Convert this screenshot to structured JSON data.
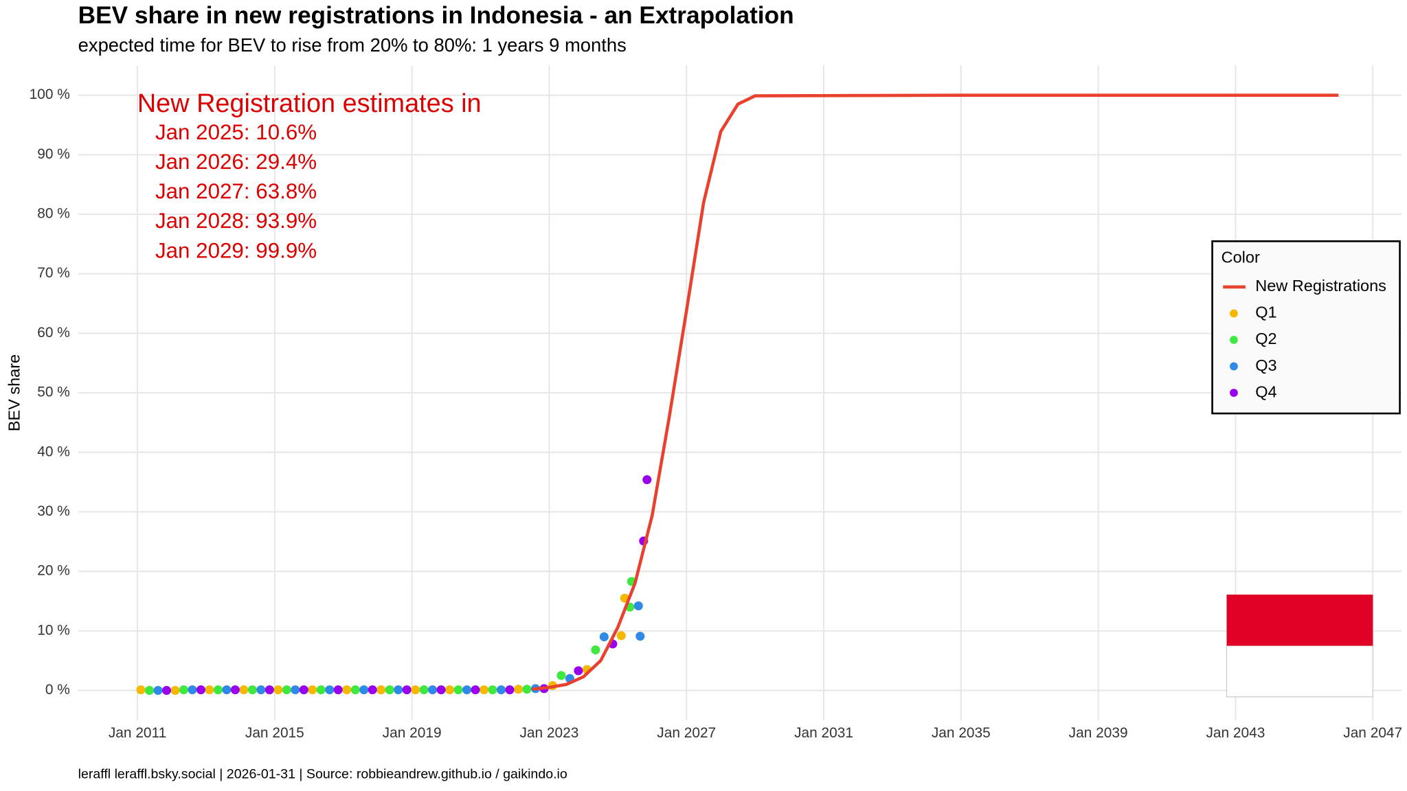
{
  "chart_data": {
    "type": "line",
    "title": "BEV share in new registrations in Indonesia - an Extrapolation",
    "subtitle": "expected time for BEV to rise from 20% to 80%: 1 years 9 months",
    "y_label": "BEV share",
    "caption": "leraffl   leraffl.bsky.social  | 2026-01-31 | Source: robbieandrew.github.io / gaikindo.io",
    "annotation_title": "New Registration estimates in",
    "annotations": [
      "Jan 2025: 10.6%",
      "Jan 2026: 29.4%",
      "Jan 2027: 63.8%",
      "Jan 2028: 93.9%",
      "Jan 2029: 99.9%"
    ],
    "xlim": [
      2009.27,
      2047.84
    ],
    "ylim": [
      -5,
      105
    ],
    "xticks": [
      {
        "value": 2011,
        "label": "Jan 2011"
      },
      {
        "value": 2015,
        "label": "Jan 2015"
      },
      {
        "value": 2019,
        "label": "Jan 2019"
      },
      {
        "value": 2023,
        "label": "Jan 2023"
      },
      {
        "value": 2027,
        "label": "Jan 2027"
      },
      {
        "value": 2031,
        "label": "Jan 2031"
      },
      {
        "value": 2035,
        "label": "Jan 2035"
      },
      {
        "value": 2039,
        "label": "Jan 2039"
      },
      {
        "value": 2043,
        "label": "Jan 2043"
      },
      {
        "value": 2047,
        "label": "Jan 2047"
      }
    ],
    "yticks": [
      {
        "value": 0,
        "label": "0 %"
      },
      {
        "value": 10,
        "label": "10 %"
      },
      {
        "value": 20,
        "label": "20 %"
      },
      {
        "value": 30,
        "label": "30 %"
      },
      {
        "value": 40,
        "label": "40 %"
      },
      {
        "value": 50,
        "label": "50 %"
      },
      {
        "value": 60,
        "label": "60 %"
      },
      {
        "value": 70,
        "label": "70 %"
      },
      {
        "value": 80,
        "label": "80 %"
      },
      {
        "value": 90,
        "label": "90 %"
      },
      {
        "value": 100,
        "label": "100 %"
      }
    ],
    "grid": true,
    "legend_title": "Color",
    "legend_position": "right",
    "series": [
      {
        "name": "New Registrations",
        "type": "line",
        "color": "#e8412e",
        "x": [
          2022.5,
          2023,
          2023.5,
          2024,
          2024.5,
          2025,
          2025.5,
          2026,
          2026.5,
          2027,
          2027.5,
          2028,
          2028.5,
          2029,
          2035,
          2046
        ],
        "values": [
          0.2,
          0.5,
          1.0,
          2.3,
          5,
          10.6,
          18,
          29.4,
          46,
          63.8,
          82,
          93.9,
          98.5,
          99.9,
          100,
          100
        ]
      },
      {
        "name": "Q1",
        "type": "scatter",
        "color": "#f5b800",
        "x": [
          2011.1,
          2012.1,
          2013.1,
          2014.1,
          2015.1,
          2016.1,
          2017.1,
          2018.1,
          2019.1,
          2020.1,
          2021.1,
          2022.1,
          2023.1,
          2024.1,
          2025.1,
          2025.2
        ],
        "values": [
          0.1,
          0,
          0.1,
          0.1,
          0.1,
          0.1,
          0.1,
          0.1,
          0.1,
          0.1,
          0.1,
          0.2,
          0.8,
          3.5,
          9.2,
          15.5
        ]
      },
      {
        "name": "Q2",
        "type": "scatter",
        "color": "#3ee83e",
        "x": [
          2011.35,
          2012.35,
          2013.35,
          2014.35,
          2015.35,
          2016.35,
          2017.35,
          2018.35,
          2019.35,
          2020.35,
          2021.35,
          2022.35,
          2023.35,
          2024.35,
          2025.35,
          2025.4
        ],
        "values": [
          0,
          0.1,
          0.1,
          0.1,
          0.1,
          0.1,
          0.1,
          0.1,
          0.1,
          0.1,
          0.1,
          0.2,
          2.5,
          6.8,
          14,
          18.3
        ]
      },
      {
        "name": "Q3",
        "type": "scatter",
        "color": "#2e8ae6",
        "x": [
          2011.6,
          2012.6,
          2013.6,
          2014.6,
          2015.6,
          2016.6,
          2017.6,
          2018.6,
          2019.6,
          2020.6,
          2021.6,
          2022.6,
          2023.6,
          2024.6,
          2025.6,
          2025.65
        ],
        "values": [
          0,
          0.1,
          0.1,
          0.1,
          0.1,
          0.1,
          0.1,
          0.1,
          0.1,
          0.1,
          0.1,
          0.3,
          2.0,
          9.0,
          14.2,
          9.1
        ]
      },
      {
        "name": "Q4",
        "type": "scatter",
        "color": "#9900ee",
        "x": [
          2011.85,
          2012.85,
          2013.85,
          2014.85,
          2015.85,
          2016.85,
          2017.85,
          2018.85,
          2019.85,
          2020.85,
          2021.85,
          2022.85,
          2023.85,
          2024.85,
          2025.75,
          2025.85
        ],
        "values": [
          0,
          0.1,
          0.1,
          0.1,
          0.1,
          0.1,
          0.1,
          0.1,
          0.1,
          0.1,
          0.1,
          0.3,
          3.3,
          7.8,
          25.1,
          35.4
        ]
      }
    ]
  }
}
